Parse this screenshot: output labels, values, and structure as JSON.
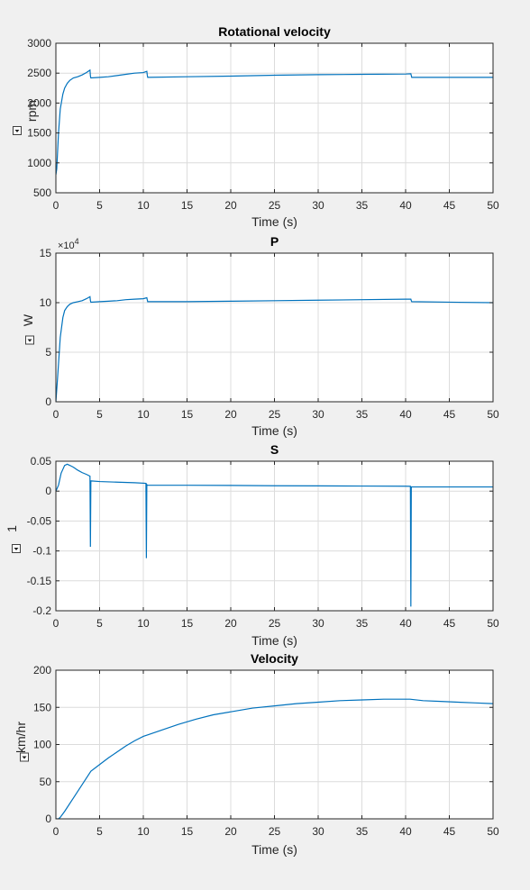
{
  "figure": {
    "background": "#f0f0f0",
    "line_color": "#0072bd",
    "grid_color": "#dcdcdc"
  },
  "chart_data": [
    {
      "type": "line",
      "title": "Rotational velocity",
      "xlabel": "Time (s)",
      "ylabel": "rpm",
      "xlim": [
        0,
        50
      ],
      "ylim": [
        500,
        3000
      ],
      "xticks": [
        0,
        5,
        10,
        15,
        20,
        25,
        30,
        35,
        40,
        45,
        50
      ],
      "yticks": [
        500,
        1000,
        1500,
        2000,
        2500,
        3000
      ],
      "xtick_labels": [
        "0",
        "5",
        "10",
        "15",
        "20",
        "25",
        "30",
        "35",
        "40",
        "45",
        "50"
      ],
      "ytick_labels": [
        "500",
        "1000",
        "1500",
        "2000",
        "2500",
        "3000"
      ],
      "grid": true,
      "exponent_label": null,
      "x": [
        0,
        0.1,
        0.3,
        0.5,
        0.8,
        1.0,
        1.3,
        1.6,
        2.0,
        2.5,
        3.0,
        3.5,
        3.9,
        3.95,
        4.0,
        5.0,
        6.0,
        7.0,
        8.0,
        9.0,
        10.0,
        10.4,
        10.45,
        10.5,
        15,
        20,
        25,
        30,
        35,
        40,
        40.6,
        40.65,
        40.7,
        45,
        50
      ],
      "y": [
        800,
        900,
        1500,
        1900,
        2150,
        2250,
        2330,
        2380,
        2420,
        2440,
        2470,
        2510,
        2550,
        2450,
        2420,
        2430,
        2440,
        2460,
        2480,
        2500,
        2510,
        2530,
        2470,
        2430,
        2440,
        2450,
        2465,
        2475,
        2480,
        2485,
        2490,
        2460,
        2430,
        2430,
        2430
      ]
    },
    {
      "type": "line",
      "title": "P",
      "xlabel": "Time (s)",
      "ylabel": "W",
      "xlim": [
        0,
        50
      ],
      "ylim": [
        0,
        15
      ],
      "xticks": [
        0,
        5,
        10,
        15,
        20,
        25,
        30,
        35,
        40,
        45,
        50
      ],
      "yticks": [
        0,
        5,
        10,
        15
      ],
      "xtick_labels": [
        "0",
        "5",
        "10",
        "15",
        "20",
        "25",
        "30",
        "35",
        "40",
        "45",
        "50"
      ],
      "ytick_labels": [
        "0",
        "5",
        "10",
        "15"
      ],
      "grid": true,
      "exponent_label": {
        "base": "×10",
        "exp": "4"
      },
      "x": [
        0,
        0.2,
        0.5,
        0.8,
        1.0,
        1.3,
        1.6,
        2.0,
        2.5,
        3.0,
        3.5,
        3.9,
        3.95,
        4.0,
        5.0,
        6.0,
        7.0,
        8.0,
        9.0,
        10.0,
        10.4,
        10.45,
        10.5,
        15,
        20,
        25,
        30,
        35,
        40,
        40.6,
        40.65,
        40.7,
        45,
        50
      ],
      "y": [
        0,
        2.5,
        6.5,
        8.5,
        9.2,
        9.6,
        9.85,
        10.0,
        10.1,
        10.2,
        10.4,
        10.6,
        10.2,
        10.05,
        10.1,
        10.15,
        10.2,
        10.3,
        10.35,
        10.4,
        10.5,
        10.3,
        10.1,
        10.1,
        10.15,
        10.2,
        10.25,
        10.3,
        10.35,
        10.35,
        10.2,
        10.1,
        10.05,
        10.0
      ]
    },
    {
      "type": "line",
      "title": "S",
      "xlabel": "Time (s)",
      "ylabel": "1",
      "xlim": [
        0,
        50
      ],
      "ylim": [
        -0.2,
        0.05
      ],
      "xticks": [
        0,
        5,
        10,
        15,
        20,
        25,
        30,
        35,
        40,
        45,
        50
      ],
      "yticks": [
        -0.2,
        -0.15,
        -0.1,
        -0.05,
        0,
        0.05
      ],
      "xtick_labels": [
        "0",
        "5",
        "10",
        "15",
        "20",
        "25",
        "30",
        "35",
        "40",
        "45",
        "50"
      ],
      "ytick_labels": [
        "-0.2",
        "-0.15",
        "-0.1",
        "-0.05",
        "0",
        "0.05"
      ],
      "grid": true,
      "exponent_label": null,
      "x": [
        0,
        0.3,
        0.6,
        1.0,
        1.3,
        1.6,
        2.0,
        2.5,
        3.0,
        3.5,
        3.9,
        3.95,
        4.0,
        4.05,
        5,
        7,
        9,
        10.3,
        10.35,
        10.4,
        10.45,
        15,
        20,
        25,
        30,
        35,
        40,
        40.55,
        40.6,
        40.65,
        40.7,
        45,
        50
      ],
      "y": [
        0.0,
        0.01,
        0.03,
        0.043,
        0.045,
        0.043,
        0.04,
        0.035,
        0.031,
        0.028,
        0.025,
        -0.093,
        0.017,
        0.017,
        0.016,
        0.015,
        0.014,
        0.013,
        -0.112,
        0.011,
        0.01,
        0.0098,
        0.0095,
        0.009,
        0.0088,
        0.0085,
        0.0082,
        0.008,
        -0.193,
        0.007,
        0.007,
        0.007,
        0.007
      ]
    },
    {
      "type": "line",
      "title": "Velocity",
      "xlabel": "Time (s)",
      "ylabel": "km/hr",
      "xlim": [
        0,
        50
      ],
      "ylim": [
        0,
        200
      ],
      "xticks": [
        0,
        5,
        10,
        15,
        20,
        25,
        30,
        35,
        40,
        45,
        50
      ],
      "yticks": [
        0,
        50,
        100,
        150,
        200
      ],
      "xtick_labels": [
        "0",
        "5",
        "10",
        "15",
        "20",
        "25",
        "30",
        "35",
        "40",
        "45",
        "50"
      ],
      "ytick_labels": [
        "0",
        "50",
        "100",
        "150",
        "200"
      ],
      "grid": true,
      "exponent_label": null,
      "x": [
        0,
        0.3,
        0.5,
        1.0,
        2.0,
        3.0,
        4.0,
        5.0,
        6.0,
        7.0,
        8.0,
        9.0,
        10.0,
        10.5,
        12,
        14,
        16,
        18,
        20,
        22.5,
        25,
        27.5,
        30,
        32.5,
        35,
        37.5,
        40,
        40.5,
        42,
        44,
        46,
        48,
        50
      ],
      "y": [
        0,
        0,
        2,
        10,
        28,
        46,
        64,
        73,
        82,
        90,
        98,
        105,
        111,
        113,
        119,
        127,
        134,
        140,
        144,
        149,
        152,
        155,
        157,
        159,
        160,
        161,
        161,
        161,
        159,
        158,
        157,
        156,
        155
      ]
    }
  ]
}
